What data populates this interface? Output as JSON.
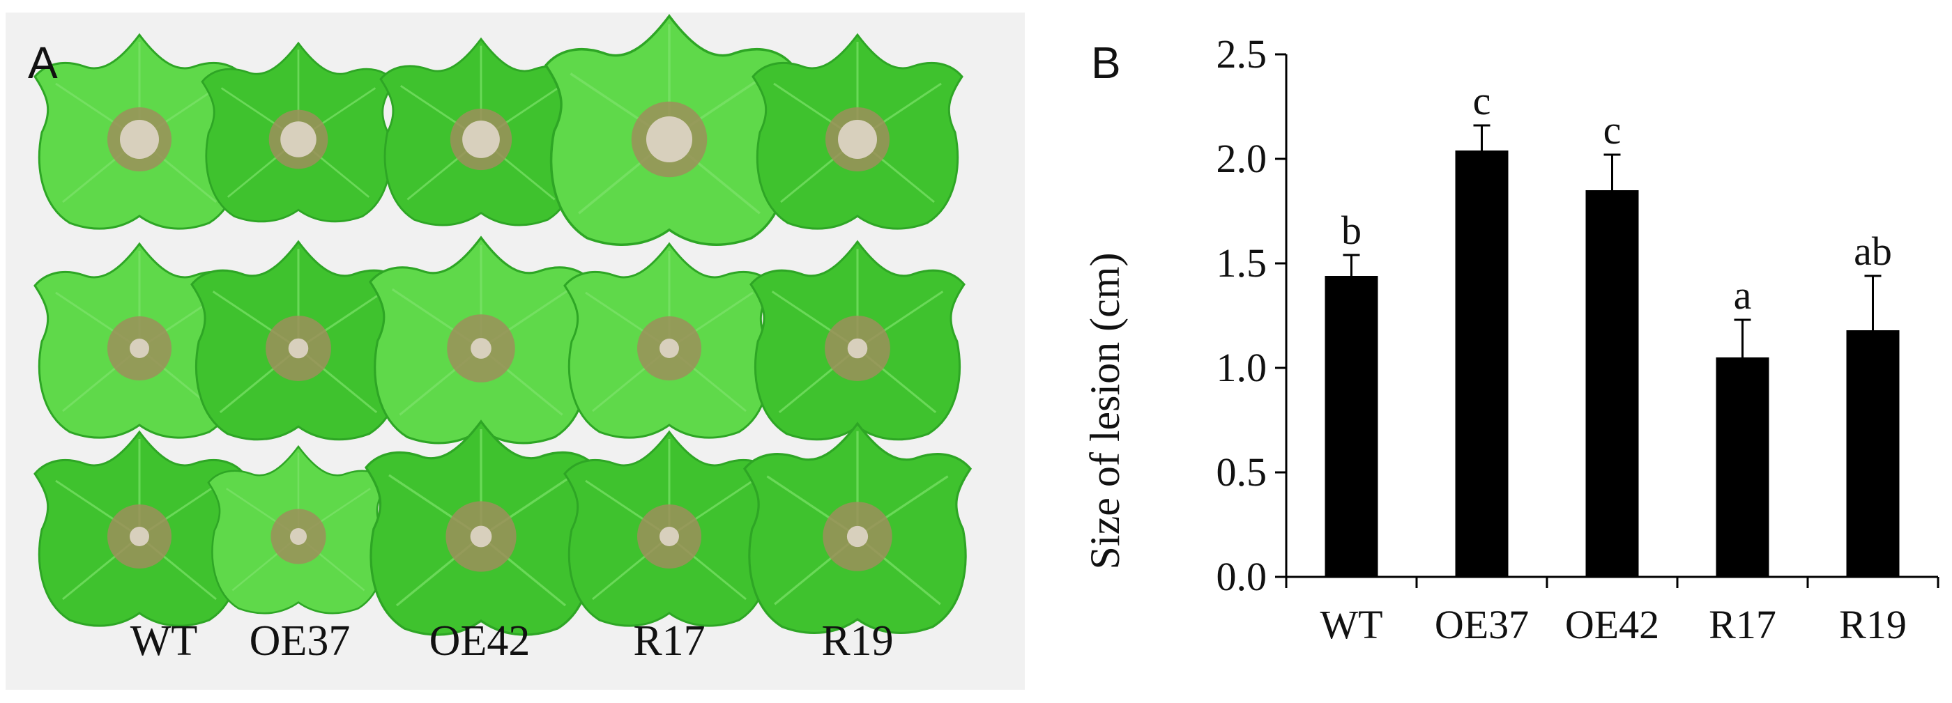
{
  "panel_a": {
    "letter": "A",
    "labels": [
      "WT",
      "OE37",
      "OE42",
      "R17",
      "R19"
    ]
  },
  "colors": {
    "leaf_light": "#5fd94a",
    "leaf_mid": "#3fc22e",
    "leaf_dark": "#2ea625",
    "lesion_ring": "#9c8f5a",
    "lesion_center": "#d8d0bd",
    "background_photo": "#f2f2f2",
    "bar_fill": "#000000"
  },
  "chart_data": {
    "type": "bar",
    "panel_letter": "B",
    "categories": [
      "WT",
      "OE37",
      "OE42",
      "R17",
      "R19"
    ],
    "values": [
      1.44,
      2.04,
      1.85,
      1.05,
      1.18
    ],
    "errors": [
      0.1,
      0.12,
      0.17,
      0.18,
      0.26
    ],
    "significance": [
      "b",
      "c",
      "c",
      "a",
      "ab"
    ],
    "ylabel": "Size of lesion (cm)",
    "xlabel": "",
    "ylim": [
      0.0,
      2.5
    ],
    "yticks": [
      "0.0",
      "0.5",
      "1.0",
      "1.5",
      "2.0",
      "2.5"
    ],
    "grid": false,
    "legend": "none"
  }
}
